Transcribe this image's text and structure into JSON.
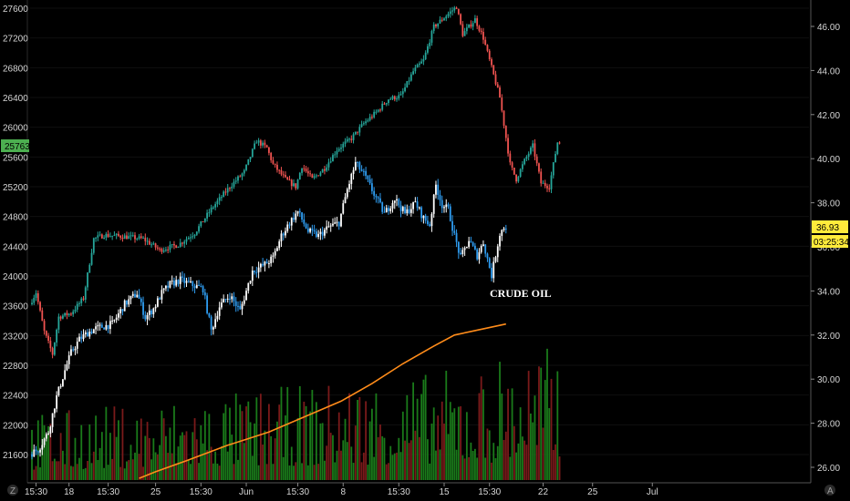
{
  "chart_data": {
    "type": "candlestick",
    "title": "",
    "annotation": "CRUDE OIL",
    "colors": {
      "background": "#000000",
      "up_primary": "#26a69a",
      "down_primary": "#ef5350",
      "up_secondary": "#ffffff",
      "down_secondary": "#2e9cf0",
      "moving_average": "#ff8c1a",
      "volume_up": "#1a7a1a",
      "volume_down": "#7a1a1a",
      "left_badge": "#4caf50",
      "right_badge": "#ffeb3b"
    },
    "x_axis": {
      "tick_labels": [
        "15:30",
        "18",
        "15:30",
        "25",
        "15:30",
        "Jun",
        "15:30",
        "8",
        "15:30",
        "15",
        "15:30",
        "22",
        "25",
        "Jul"
      ],
      "range_bars": [
        0,
        208
      ],
      "ticks_at_bar": [
        2,
        18,
        37,
        60,
        82,
        104,
        129,
        151,
        178,
        200,
        222,
        248,
        272,
        301
      ]
    },
    "left_axis": {
      "tick_labels": [
        "27600",
        "27200",
        "26800",
        "26400",
        "26000",
        "25600",
        "25200",
        "24800",
        "24400",
        "24000",
        "23600",
        "23200",
        "22800",
        "22400",
        "22000",
        "21600"
      ],
      "range": [
        21350,
        27700
      ],
      "last_value_label": "25763"
    },
    "right_axis": {
      "tick_labels": [
        "46.00",
        "44.00",
        "42.00",
        "40.00",
        "38.00",
        "36.00",
        "34.00",
        "32.00",
        "30.00",
        "28.00",
        "26.00"
      ],
      "range": [
        25.5,
        47.2
      ],
      "last_value_label": "36.93",
      "countdown_label": "03:25:34"
    },
    "series": [
      {
        "name": "",
        "axis": "left",
        "style": "green/red candles",
        "path": [
          [
            0,
            23620
          ],
          [
            3,
            23780
          ],
          [
            7,
            23250
          ],
          [
            11,
            22950
          ],
          [
            14,
            23450
          ],
          [
            20,
            23500
          ],
          [
            26,
            23700
          ],
          [
            31,
            24500
          ],
          [
            36,
            24550
          ],
          [
            46,
            24530
          ],
          [
            55,
            24500
          ],
          [
            63,
            24350
          ],
          [
            72,
            24420
          ],
          [
            80,
            24580
          ],
          [
            88,
            24900
          ],
          [
            97,
            25200
          ],
          [
            104,
            25400
          ],
          [
            110,
            25820
          ],
          [
            115,
            25720
          ],
          [
            118,
            25500
          ],
          [
            124,
            25300
          ],
          [
            129,
            25200
          ],
          [
            132,
            25480
          ],
          [
            137,
            25300
          ],
          [
            143,
            25450
          ],
          [
            149,
            25700
          ],
          [
            156,
            25850
          ],
          [
            162,
            26050
          ],
          [
            168,
            26200
          ],
          [
            174,
            26380
          ],
          [
            180,
            26420
          ],
          [
            186,
            26750
          ],
          [
            191,
            26900
          ],
          [
            196,
            27350
          ],
          [
            202,
            27500
          ],
          [
            207,
            27620
          ],
          [
            210,
            27250
          ],
          [
            216,
            27450
          ],
          [
            220,
            27200
          ],
          [
            225,
            26700
          ],
          [
            228,
            26400
          ],
          [
            233,
            25500
          ],
          [
            236,
            25300
          ],
          [
            240,
            25550
          ],
          [
            244,
            25750
          ],
          [
            248,
            25250
          ],
          [
            252,
            25200
          ],
          [
            256,
            25800
          ]
        ]
      },
      {
        "name": "",
        "axis": "right",
        "style": "white/blue candles",
        "path": [
          [
            0,
            26.6
          ],
          [
            4,
            26.8
          ],
          [
            9,
            27.6
          ],
          [
            13,
            29.2
          ],
          [
            17,
            30.4
          ],
          [
            20,
            31.2
          ],
          [
            24,
            31.8
          ],
          [
            28,
            32.1
          ],
          [
            32,
            32.3
          ],
          [
            40,
            32.5
          ],
          [
            46,
            33.4
          ],
          [
            52,
            33.9
          ],
          [
            56,
            32.8
          ],
          [
            60,
            33.2
          ],
          [
            64,
            33.9
          ],
          [
            68,
            34.3
          ],
          [
            73,
            34.5
          ],
          [
            78,
            34.3
          ],
          [
            84,
            34.1
          ],
          [
            88,
            32.2
          ],
          [
            92,
            33.3
          ],
          [
            97,
            33.8
          ],
          [
            102,
            33.1
          ],
          [
            108,
            34.9
          ],
          [
            114,
            35.2
          ],
          [
            118,
            35.5
          ],
          [
            122,
            36.5
          ],
          [
            126,
            37.1
          ],
          [
            130,
            37.6
          ],
          [
            135,
            36.7
          ],
          [
            140,
            36.5
          ],
          [
            145,
            36.9
          ],
          [
            150,
            37.1
          ],
          [
            154,
            38.6
          ],
          [
            158,
            39.8
          ],
          [
            162,
            39.3
          ],
          [
            167,
            38.4
          ],
          [
            172,
            37.5
          ],
          [
            177,
            38.2
          ],
          [
            182,
            37.5
          ],
          [
            187,
            38.0
          ],
          [
            191,
            37.3
          ],
          [
            194,
            37.0
          ],
          [
            197,
            38.8
          ],
          [
            200,
            37.9
          ],
          [
            203,
            37.7
          ],
          [
            206,
            36.5
          ],
          [
            209,
            35.5
          ],
          [
            213,
            36.3
          ],
          [
            217,
            35.6
          ],
          [
            220,
            36.2
          ],
          [
            224,
            34.7
          ],
          [
            228,
            36.6
          ],
          [
            230,
            36.9
          ]
        ]
      },
      {
        "name": "",
        "axis": "right",
        "style": "line",
        "path": [
          [
            52,
            25.5
          ],
          [
            60,
            25.8
          ],
          [
            75,
            26.3
          ],
          [
            95,
            27.0
          ],
          [
            115,
            27.6
          ],
          [
            130,
            28.2
          ],
          [
            150,
            29.0
          ],
          [
            165,
            29.8
          ],
          [
            180,
            30.7
          ],
          [
            195,
            31.5
          ],
          [
            205,
            32.0
          ],
          [
            215,
            32.2
          ],
          [
            230,
            32.5
          ]
        ]
      }
    ],
    "volume": {
      "note": "volume histogram in bottom band",
      "max": 100
    }
  },
  "toolbar": {
    "left_corner_label": "Z",
    "right_corner_label": "A"
  }
}
